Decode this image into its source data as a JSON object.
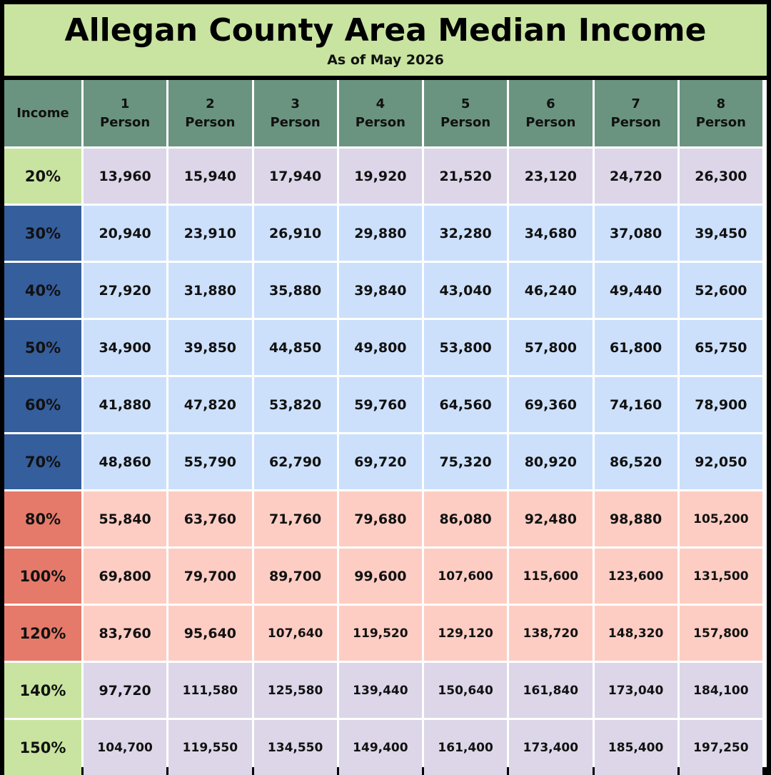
{
  "title": "Allegan County Area Median Income",
  "subtitle": "As of May 2026",
  "table": {
    "corner_label": "Income",
    "columns": [
      {
        "num": "1",
        "unit": "Person"
      },
      {
        "num": "2",
        "unit": "Person"
      },
      {
        "num": "3",
        "unit": "Person"
      },
      {
        "num": "4",
        "unit": "Person"
      },
      {
        "num": "5",
        "unit": "Person"
      },
      {
        "num": "6",
        "unit": "Person"
      },
      {
        "num": "7",
        "unit": "Person"
      },
      {
        "num": "8",
        "unit": "Person"
      }
    ],
    "rows": [
      {
        "label": "20%",
        "band": "green",
        "values": [
          "13,960",
          "15,940",
          "17,940",
          "19,920",
          "21,520",
          "23,120",
          "24,720",
          "26,300"
        ]
      },
      {
        "label": "30%",
        "band": "blue",
        "values": [
          "20,940",
          "23,910",
          "26,910",
          "29,880",
          "32,280",
          "34,680",
          "37,080",
          "39,450"
        ]
      },
      {
        "label": "40%",
        "band": "blue",
        "values": [
          "27,920",
          "31,880",
          "35,880",
          "39,840",
          "43,040",
          "46,240",
          "49,440",
          "52,600"
        ]
      },
      {
        "label": "50%",
        "band": "blue",
        "values": [
          "34,900",
          "39,850",
          "44,850",
          "49,800",
          "53,800",
          "57,800",
          "61,800",
          "65,750"
        ]
      },
      {
        "label": "60%",
        "band": "blue",
        "values": [
          "41,880",
          "47,820",
          "53,820",
          "59,760",
          "64,560",
          "69,360",
          "74,160",
          "78,900"
        ]
      },
      {
        "label": "70%",
        "band": "blue",
        "values": [
          "48,860",
          "55,790",
          "62,790",
          "69,720",
          "75,320",
          "80,920",
          "86,520",
          "92,050"
        ]
      },
      {
        "label": "80%",
        "band": "red",
        "values": [
          "55,840",
          "63,760",
          "71,760",
          "79,680",
          "86,080",
          "92,480",
          "98,880",
          "105,200"
        ]
      },
      {
        "label": "100%",
        "band": "red",
        "values": [
          "69,800",
          "79,700",
          "89,700",
          "99,600",
          "107,600",
          "115,600",
          "123,600",
          "131,500"
        ]
      },
      {
        "label": "120%",
        "band": "red",
        "values": [
          "83,760",
          "95,640",
          "107,640",
          "119,520",
          "129,120",
          "138,720",
          "148,320",
          "157,800"
        ]
      },
      {
        "label": "140%",
        "band": "green",
        "values": [
          "97,720",
          "111,580",
          "125,580",
          "139,440",
          "150,640",
          "161,840",
          "173,040",
          "184,100"
        ]
      },
      {
        "label": "150%",
        "band": "green",
        "values": [
          "104,700",
          "119,550",
          "134,550",
          "149,400",
          "161,400",
          "173,400",
          "185,400",
          "197,250"
        ]
      }
    ]
  },
  "colors": {
    "title_bg": "#c8e4a0",
    "header_bg": "#6a9480",
    "green_label": "#c8e4a0",
    "green_cell": "#dcd6e8",
    "blue_label": "#355e9c",
    "blue_cell": "#cce0fb",
    "red_label": "#e67a6a",
    "red_cell": "#fdcdc3"
  }
}
